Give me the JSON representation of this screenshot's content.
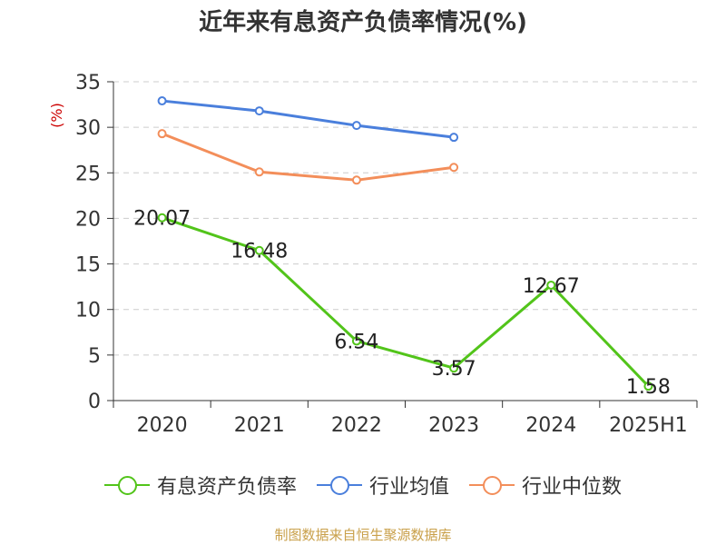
{
  "chart_data": {
    "type": "line",
    "title": "近年来有息资产负债率情况(%)",
    "ylabel": "(%)",
    "categories": [
      "2020",
      "2021",
      "2022",
      "2023",
      "2024",
      "2025H1"
    ],
    "ylim": [
      0,
      35
    ],
    "yticks": [
      "0",
      "5",
      "10",
      "15",
      "20",
      "25",
      "30",
      "35"
    ],
    "grid": true,
    "legend_position": "bottom",
    "series": [
      {
        "name": "有息资产负债率",
        "color": "#52c41a",
        "values": [
          20.07,
          16.48,
          6.54,
          3.57,
          12.67,
          1.58
        ],
        "labels": [
          "20.07",
          "16.48",
          "6.54",
          "3.57",
          "12.67",
          "1.58"
        ]
      },
      {
        "name": "行业均值",
        "color": "#4a7fdc",
        "values": [
          32.9,
          31.8,
          30.2,
          28.9,
          null,
          null
        ]
      },
      {
        "name": "行业中位数",
        "color": "#f38e5a",
        "values": [
          29.3,
          25.1,
          24.2,
          25.6,
          null,
          null
        ]
      }
    ]
  },
  "source": "制图数据来自恒生聚源数据库"
}
